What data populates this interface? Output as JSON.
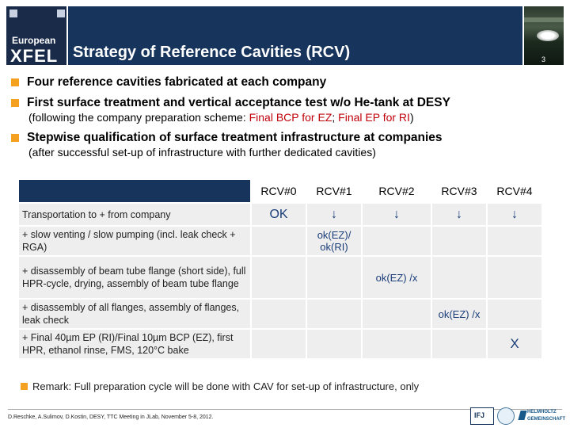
{
  "header": {
    "logo_line1": "European",
    "logo_line2": "XFEL",
    "title": "Strategy of Reference Cavities (RCV)",
    "slide_number": "3"
  },
  "bullets": [
    {
      "main": "Four reference cavities fabricated at each company"
    },
    {
      "main": "First surface treatment and vertical acceptance test w/o He-tank at DESY",
      "sub_prefix": "(following the company preparation scheme: ",
      "sub_red1": "Final BCP for EZ",
      "sub_mid": "; ",
      "sub_red2": "Final EP for RI",
      "sub_suffix": ")"
    },
    {
      "main": "Stepwise qualification of surface treatment infrastructure at companies",
      "sub": "(after successful set-up of infrastructure with further dedicated cavities)"
    }
  ],
  "table": {
    "columns": [
      "RCV#0",
      "RCV#1",
      "RCV#2",
      "RCV#3",
      "RCV#4"
    ],
    "rows": [
      {
        "label": "Transportation to + from company",
        "cells": [
          "OK",
          "↓",
          "↓",
          "↓",
          "↓"
        ]
      },
      {
        "label": "+ slow venting / slow pumping (incl. leak check + RGA)",
        "cells": [
          "",
          "ok(EZ)/ ok(RI)",
          "",
          "",
          ""
        ]
      },
      {
        "label": "+ disassembly of beam tube flange (short side), full HPR-cycle, drying, assembly of beam tube flange",
        "cells": [
          "",
          "",
          "ok(EZ) /x",
          "",
          ""
        ]
      },
      {
        "label": "+ disassembly of all flanges, assembly of flanges, leak check",
        "cells": [
          "",
          "",
          "",
          "ok(EZ) /x",
          ""
        ]
      },
      {
        "label": "+ Final 40µm EP (RI)/Final 10µm BCP (EZ), first HPR, ethanol rinse, FMS,  120°C bake",
        "cells": [
          "",
          "",
          "",
          "",
          "X"
        ]
      }
    ]
  },
  "remark": "Remark: Full preparation cycle will be done with CAV for set-up of infrastructure, only",
  "footer": {
    "text": "D.Reschke, A.Sulimov, D.Kostin, DESY, TTC Meeting in JLab, November 5-8, 2012.",
    "logo_a_text": "IFJ",
    "logo_c_line1": "HELMHOLTZ",
    "logo_c_line2": "GEMEINSCHAFT"
  },
  "colors": {
    "title_bar": "#16345c",
    "bullet_square": "#f4a020",
    "highlight_red": "#c0000a",
    "table_cell": "#eeeeee",
    "cell_text": "#1a3d7a"
  }
}
